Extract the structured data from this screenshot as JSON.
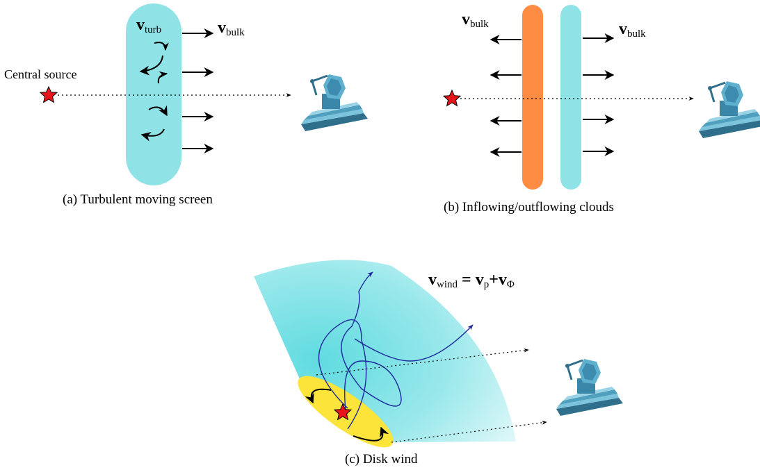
{
  "panel_a": {
    "caption": "(a) Turbulent moving screen",
    "central_source": "Central source",
    "v_turb": {
      "sym": "v",
      "sub": "turb"
    },
    "v_bulk": {
      "sym": "v",
      "sub": "bulk"
    }
  },
  "panel_b": {
    "caption": "(b) Inflowing/outflowing clouds",
    "v_bulk_left": {
      "sym": "v",
      "sub": "bulk"
    },
    "v_bulk_right": {
      "sym": "v",
      "sub": "bulk"
    }
  },
  "panel_c": {
    "caption": "(c) Disk wind",
    "v_wind": {
      "sym": "v",
      "sub": "wind"
    },
    "equals": "=",
    "v_p": {
      "sym": "v",
      "sub": "p"
    },
    "plus": "+",
    "v_phi": {
      "sym": "v",
      "sub": "Φ"
    }
  },
  "colors": {
    "cyan": "#8fe3e6",
    "orange": "#ff8c42",
    "yellow": "#fce43a",
    "star": "#e8141c",
    "telescope": "#3f8fb0",
    "streamline": "#1c2a9c"
  },
  "icons": [
    "star-icon",
    "telescope-icon"
  ]
}
